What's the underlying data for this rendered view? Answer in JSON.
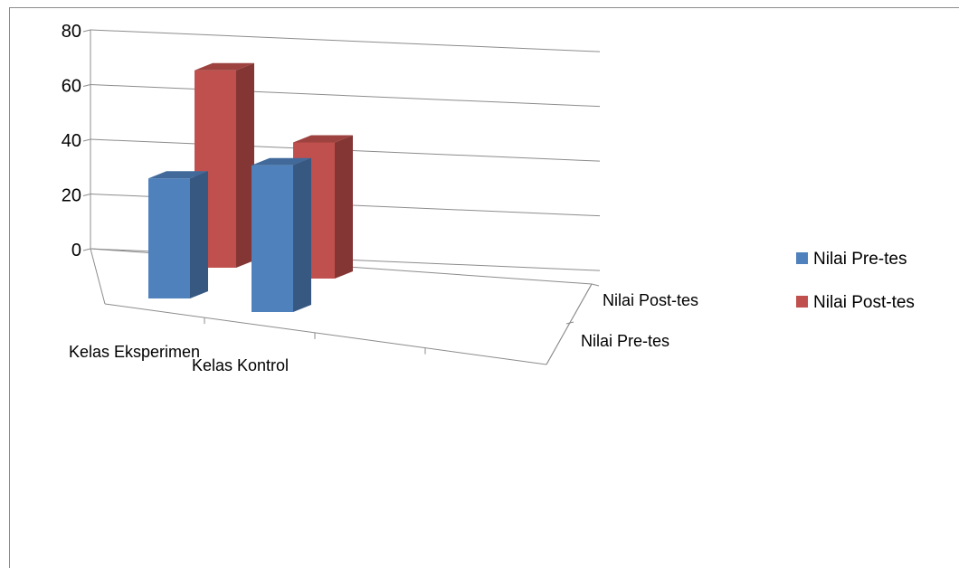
{
  "chart_data": {
    "type": "bar",
    "style": "3d-column",
    "categories": [
      "Kelas Eksperimen",
      "Kelas Kontrol"
    ],
    "depth_labels": [
      "Nilai Pre-tes",
      "Nilai Post-tes"
    ],
    "series": [
      {
        "name": "Nilai Pre-tes",
        "values": [
          45,
          55
        ],
        "color": "#4f81bd"
      },
      {
        "name": "Nilai Post-tes",
        "values": [
          74,
          51
        ],
        "color": "#c0504d"
      }
    ],
    "y_ticks": [
      "0",
      "20",
      "40",
      "60",
      "80"
    ],
    "ylim": [
      0,
      80
    ],
    "grid": true,
    "legend_position": "right"
  }
}
